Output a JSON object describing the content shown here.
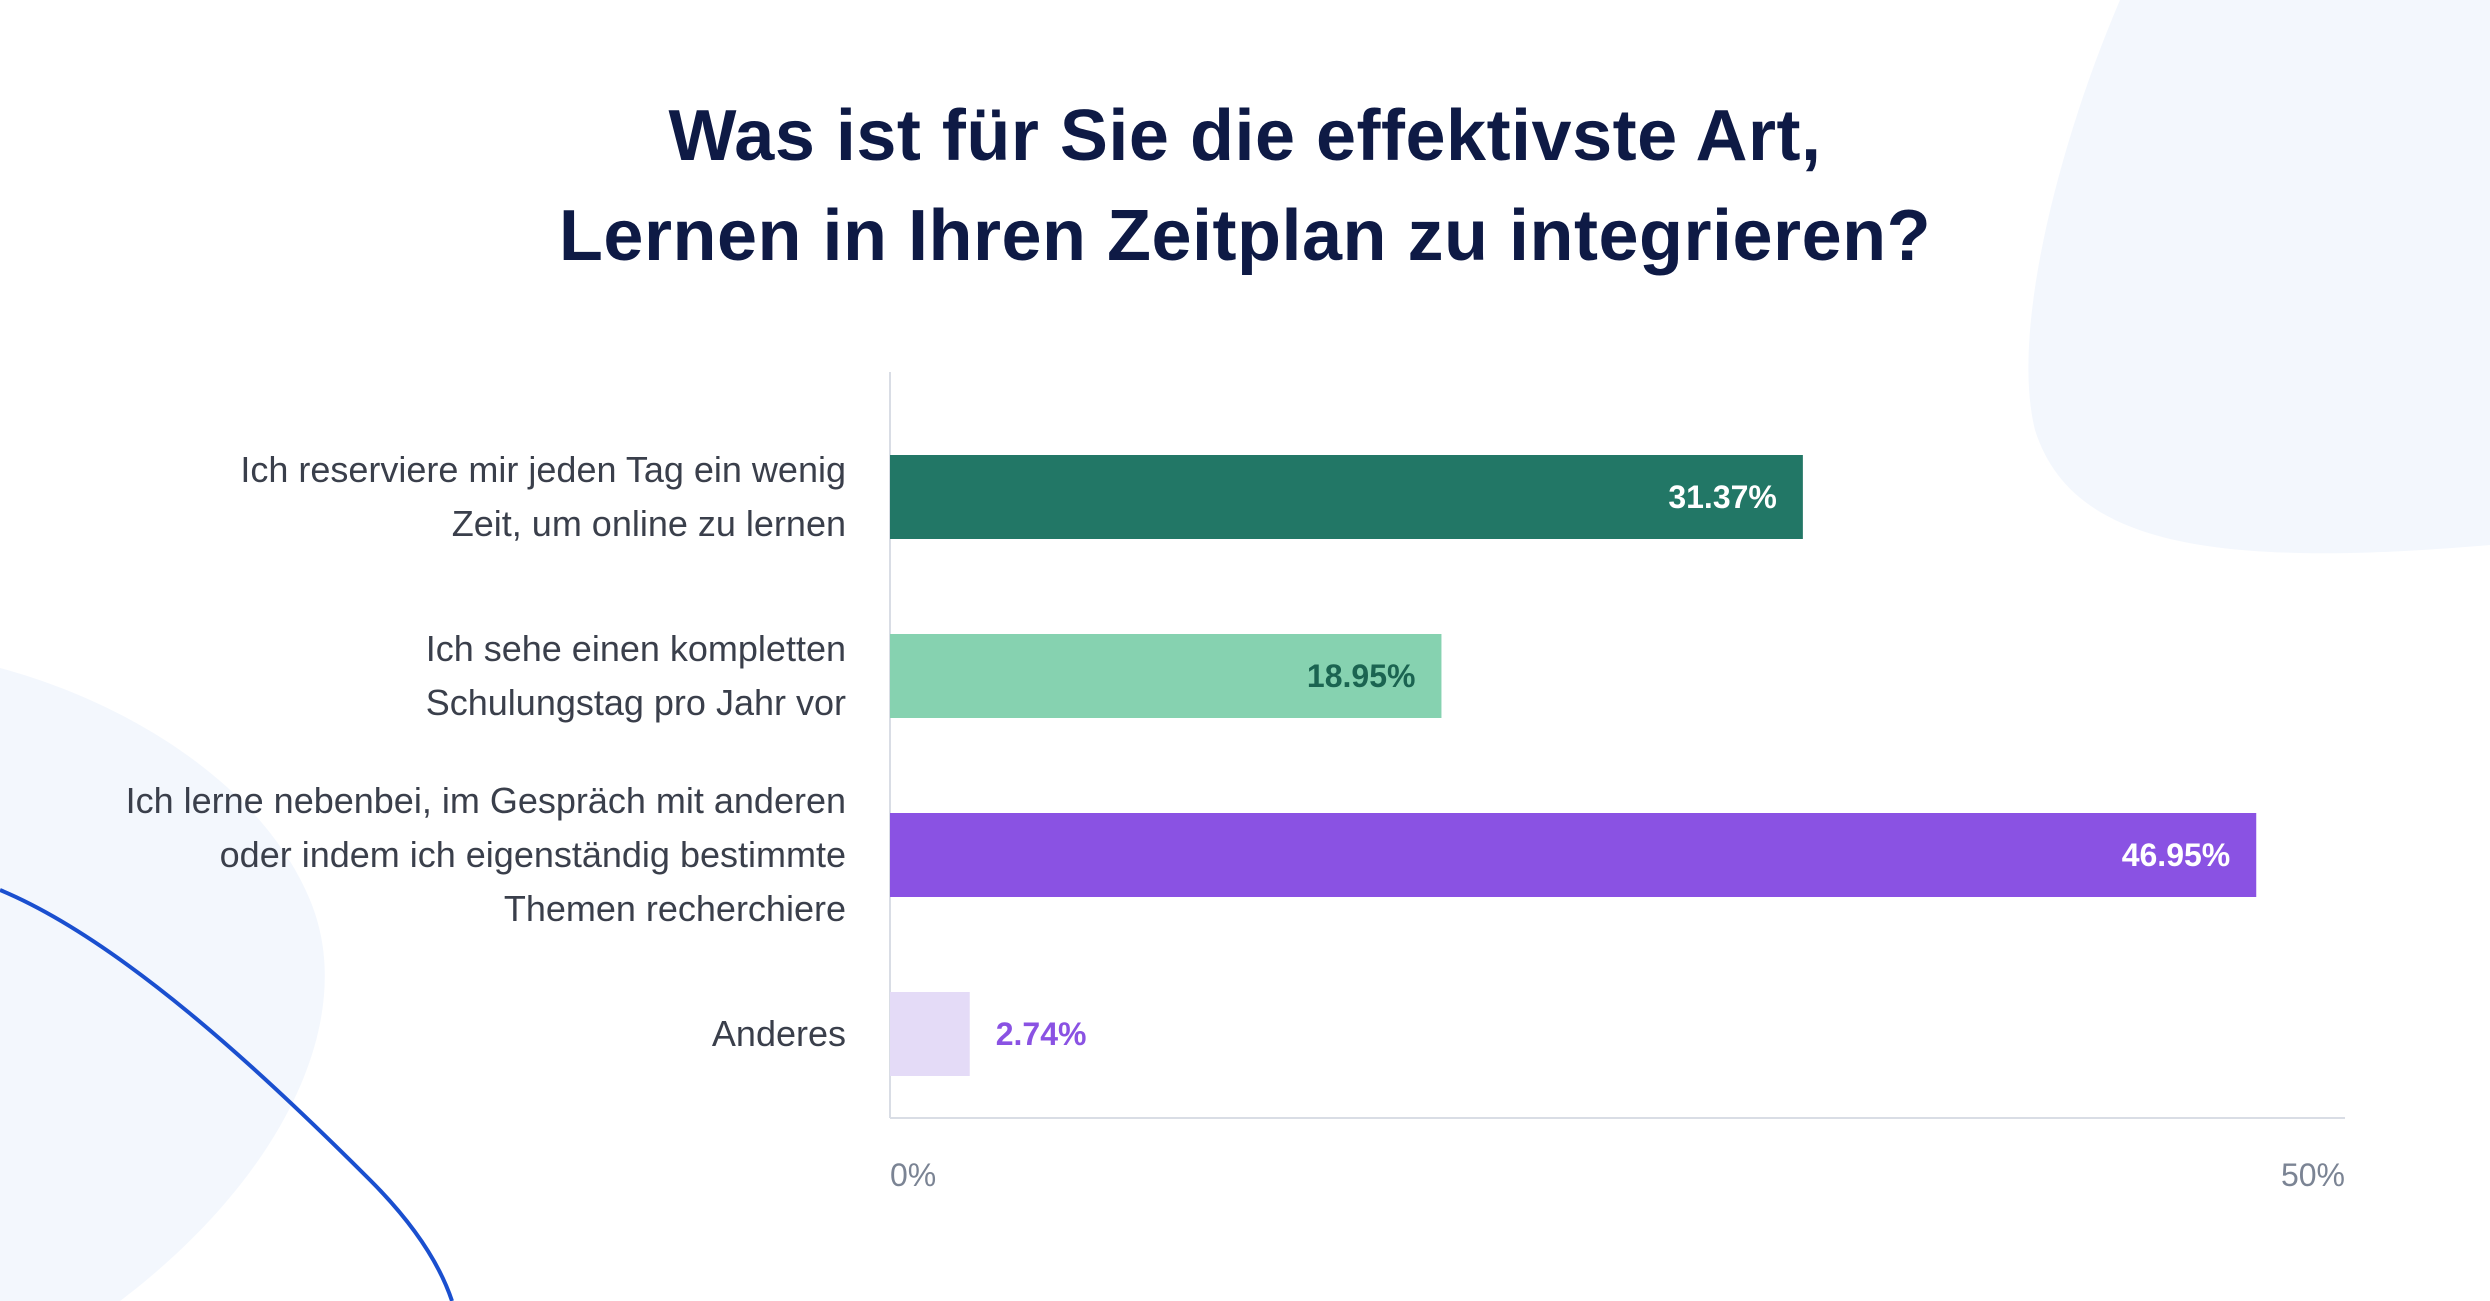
{
  "chart_data": {
    "type": "bar",
    "orientation": "horizontal",
    "title_lines": [
      "Was ist für Sie die effektivste Art,",
      "Lernen in Ihren Zeitplan zu integrieren?"
    ],
    "categories": [
      [
        "Ich reserviere mir jeden Tag ein wenig",
        "Zeit, um online zu lernen"
      ],
      [
        "Ich sehe einen kompletten",
        "Schulungstag pro Jahr vor"
      ],
      [
        "Ich lerne nebenbei, im Gespräch mit anderen",
        "oder indem ich eigenständig bestimmte",
        "Themen recherchiere"
      ],
      [
        "Anderes"
      ]
    ],
    "values": [
      31.37,
      18.95,
      46.95,
      2.74
    ],
    "value_labels": [
      "31.37%",
      "18.95%",
      "46.95%",
      "2.74%"
    ],
    "bar_colors": [
      "#227766",
      "#86d2b0",
      "#8a52e3",
      "#e4dbf7"
    ],
    "value_label_colors": [
      "#ffffff",
      "#1b6451",
      "#ffffff",
      "#8a52e3"
    ],
    "xlim": [
      0,
      50
    ],
    "x_ticks": [
      "0%",
      "50%"
    ],
    "xlabel": "",
    "ylabel": "",
    "grid": false,
    "legend": "none"
  }
}
